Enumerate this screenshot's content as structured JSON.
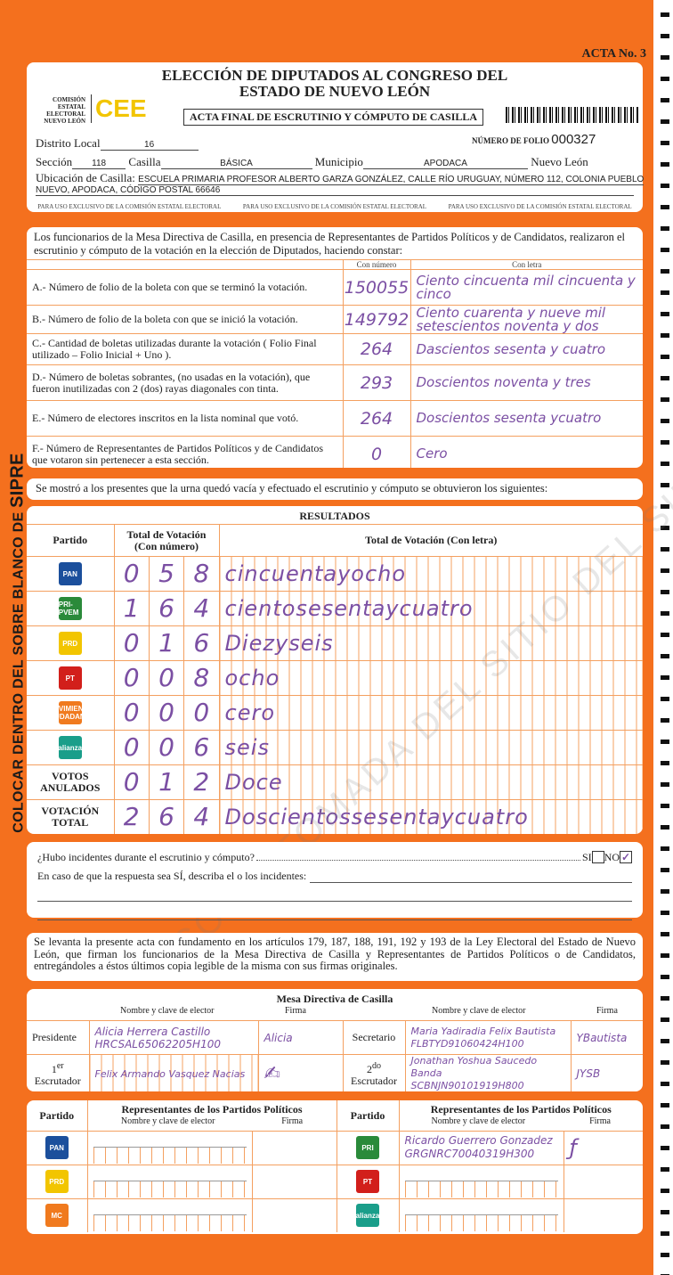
{
  "acta_no": "ACTA No. 3",
  "side_text": "COLOCAR DENTRO DEL SOBRE BLANCO DE",
  "side_text_bold": "SIPRE",
  "watermark": "COPIA TOMADA DEL SITIO DEL SIPRE",
  "header": {
    "title1": "ELECCIÓN DE DIPUTADOS AL CONGRESO DEL",
    "title2": "ESTADO DE NUEVO LEÓN",
    "org": "COMISIÓN ESTATAL ELECTORAL NUEVO LEÓN",
    "logo": "CEE",
    "subtitle": "ACTA FINAL DE ESCRUTINIO Y CÓMPUTO DE CASILLA",
    "folio_label": "NÚMERO DE FOLIO",
    "folio": "000327",
    "distrito_label": "Distrito Local",
    "distrito": "16",
    "seccion_label": "Sección",
    "seccion": "118",
    "casilla_label": "Casilla",
    "casilla": "BÁSICA",
    "municipio_label": "Municipio",
    "municipio": "APODACA",
    "estado": "Nuevo León",
    "ubicacion_label": "Ubicación de Casilla:",
    "ubicacion1": "ESCUELA PRIMARIA PROFESOR ALBERTO GARZA GONZÁLEZ, CALLE RÍO URUGUAY, NÚMERO 112, COLONIA PUEBLO",
    "ubicacion2": "NUEVO, APODACA, CÓDIGO POSTAL 66646",
    "uso": "PARA USO EXCLUSIVO DE LA COMISIÓN ESTATAL ELECTORAL"
  },
  "constancia": {
    "intro": "Los funcionarios de la Mesa Directiva de Casilla, en presencia de Representantes de Partidos Políticos  y de Candidatos, realizaron el escrutinio y cómputo de la votación en la elección de Diputados, haciendo constar:",
    "col_num": "Con número",
    "col_letra": "Con letra",
    "rows": [
      {
        "label": "A.- Número de folio de la boleta con que se terminó la votación.",
        "num": "150055",
        "letra": "Ciento cincuenta mil cincuenta y cinco"
      },
      {
        "label": "B.- Número de folio de la boleta con que se inició la votación.",
        "num": "149792",
        "letra": "Ciento cuarenta y nueve mil setescientos noventa y dos"
      },
      {
        "label": "C.- Cantidad de boletas utilizadas durante la votación ( Folio Final utilizado – Folio Inicial + Uno ).",
        "num": "264",
        "letra": "Dascientos sesenta y cuatro"
      },
      {
        "label": "D.- Número de boletas sobrantes, (no usadas en la votación), que fueron inutilizadas con 2 (dos) rayas diagonales con tinta.",
        "num": "293",
        "letra": "Doscientos noventa y tres"
      },
      {
        "label": "E.- Número de electores inscritos en la lista nominal que votó.",
        "num": "264",
        "letra": "Doscientos sesenta ycuatro"
      },
      {
        "label": "F.- Número de Representantes de Partidos Políticos y de Candidatos que votaron sin pertenecer a esta sección.",
        "num": "0",
        "letra": "Cero"
      }
    ]
  },
  "mostro": "Se mostró a los presentes que la urna quedó vacía y efectuado el escrutinio y cómputo se obtuvieron los siguientes:",
  "resultados": {
    "title": "RESULTADOS",
    "col_partido": "Partido",
    "col_num": "Total de Votación (Con número)",
    "col_letra": "Total de Votación (Con letra)",
    "rows": [
      {
        "party": "PAN",
        "color": "#1b4f9c",
        "digits": [
          "0",
          "5",
          "8"
        ],
        "letra": "cincuentayocho"
      },
      {
        "party": "PRI-PVEM",
        "color": "#2a8a3a",
        "digits": [
          "1",
          "6",
          "4"
        ],
        "letra": "cientosesentaycuatro"
      },
      {
        "party": "PRD",
        "color": "#f2c500",
        "digits": [
          "0",
          "1",
          "6"
        ],
        "letra": "Diezyseis"
      },
      {
        "party": "PT",
        "color": "#d21f1b",
        "digits": [
          "0",
          "0",
          "8"
        ],
        "letra": "ocho"
      },
      {
        "party": "MOVIMIENTO CIUDADANO",
        "color": "#f07a1e",
        "digits": [
          "0",
          "0",
          "0"
        ],
        "letra": "cero"
      },
      {
        "party": "alianza",
        "color": "#1a9e8a",
        "digits": [
          "0",
          "0",
          "6"
        ],
        "letra": "seis"
      },
      {
        "party": "VOTOS ANULADOS",
        "digits": [
          "0",
          "1",
          "2"
        ],
        "letra": "Doce"
      },
      {
        "party": "VOTACIÓN TOTAL",
        "digits": [
          "2",
          "6",
          "4"
        ],
        "letra": "Doscientossesentaycuatro"
      }
    ]
  },
  "incidentes": {
    "question": "¿Hubo incidentes durante el escrutinio y cómputo?",
    "si": "SI",
    "no": "NO",
    "no_checked": true,
    "describe": "En caso de que la respuesta sea SÍ, describa el o los incidentes:"
  },
  "legal": "Se levanta la presente acta con fundamento en los artículos 179, 187, 188, 191, 192 y 193 de la Ley Electoral del Estado de Nuevo León, que firman los funcionarios de la Mesa Directiva de Casilla y Representantes de  Partidos Políticos o de Candidatos, entregándoles a éstos últimos copia legible de la misma con sus firmas originales.",
  "mesa": {
    "title": "Mesa Directiva de Casilla",
    "col_nombre": "Nombre y clave de elector",
    "col_firma": "Firma",
    "presidente": {
      "role": "Presidente",
      "name": "Alicia Herrera Castillo",
      "clave": "HRCSAL65062205H100",
      "firma": "Alicia"
    },
    "secretario": {
      "role": "Secretario",
      "name": "Maria Yadiradia Felix Bautista",
      "clave": "FLBTYD91060424H100",
      "firma": "YBautista"
    },
    "escrutador1": {
      "role_sup": "er",
      "role_num": "1",
      "role": "Escrutador",
      "name": "Felix Armando Vasquez Nacias",
      "firma": "✍"
    },
    "escrutador2": {
      "role_sup": "do",
      "role_num": "2",
      "role": "Escrutador",
      "name": "Jonathan Yoshua Saucedo Banda",
      "clave": "SCBNJN90101919H800",
      "firma": "JYSB"
    }
  },
  "representantes": {
    "col_partido": "Partido",
    "col_rep": "Representantes de los Partidos Políticos",
    "col_nombre": "Nombre y clave de elector",
    "col_firma": "Firma",
    "left": [
      {
        "party": "PAN",
        "color": "#1b4f9c"
      },
      {
        "party": "PRD",
        "color": "#f2c500"
      },
      {
        "party": "MC",
        "color": "#f07a1e"
      }
    ],
    "right": [
      {
        "party": "PRI",
        "color": "#2a8a3a",
        "name": "Ricardo Guerrero Gonzadez",
        "clave": "GRGNRC70040319H300",
        "firma": "ƒ"
      },
      {
        "party": "PT",
        "color": "#d21f1b"
      },
      {
        "party": "alianza",
        "color": "#1a9e8a"
      }
    ]
  }
}
